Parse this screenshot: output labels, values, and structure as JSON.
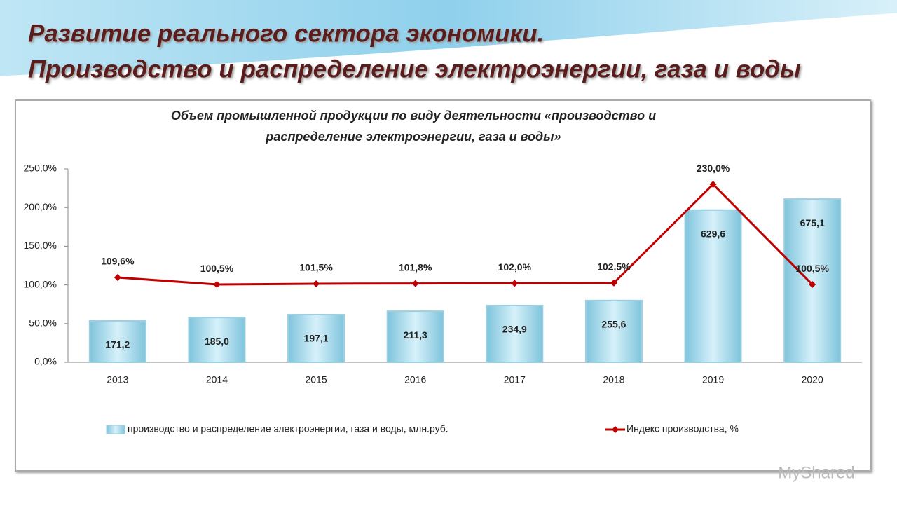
{
  "slide_title": [
    "Развитие реального сектора экономики.",
    "Производство и распределение электроэнергии, газа и воды"
  ],
  "watermark": "MyShared",
  "chart_data": {
    "type": "bar-line",
    "title": [
      "Объем  промышленной  продукции по виду деятельности «производство и",
      "распределение электроэнергии, газа и воды»"
    ],
    "categories": [
      "2013",
      "2014",
      "2015",
      "2016",
      "2017",
      "2018",
      "2019",
      "2020"
    ],
    "series": [
      {
        "name": "производство и распределение электроэнергии, газа и воды, млн.руб.",
        "type": "bar",
        "axis": "y2",
        "color": "#a9dcec",
        "values": [
          171.2,
          185.0,
          197.1,
          211.3,
          234.9,
          255.6,
          629.6,
          675.1
        ],
        "value_labels": [
          "171,2",
          "185,0",
          "197,1",
          "211,3",
          "234,9",
          "255,6",
          "629,6",
          "675,1"
        ]
      },
      {
        "name": "Индекс производства, %",
        "type": "line",
        "color": "#c00000",
        "values": [
          109.6,
          100.5,
          101.5,
          101.8,
          102.0,
          102.5,
          230.0,
          100.5
        ],
        "value_labels": [
          "109,6%",
          "100,5%",
          "101,5%",
          "101,8%",
          "102,0%",
          "102,5%",
          "230,0%",
          "100,5%"
        ]
      }
    ],
    "ylim": [
      0,
      250
    ],
    "yticks": [
      {
        "value": 0,
        "label": "0,0%"
      },
      {
        "value": 50,
        "label": "50,0%"
      },
      {
        "value": 100,
        "label": "100,0%"
      },
      {
        "value": 150,
        "label": "150,0%"
      },
      {
        "value": 200,
        "label": "200,0%"
      },
      {
        "value": 250,
        "label": "250,0%"
      }
    ],
    "y2lim": [
      0,
      800
    ],
    "grid": false,
    "legend": "bottom"
  }
}
